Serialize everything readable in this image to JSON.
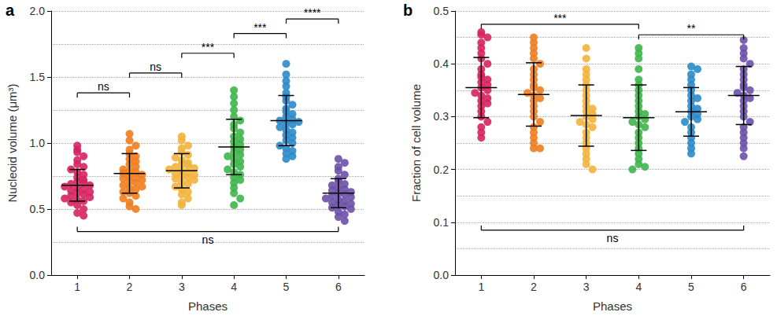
{
  "chart_data": [
    {
      "type": "scatter",
      "title": "a",
      "x_label": "Phases",
      "y_label": "Nucleoid volume (μm³)",
      "categories": [
        "1",
        "2",
        "3",
        "4",
        "5",
        "6"
      ],
      "colors": [
        "#d6245f",
        "#f07d1f",
        "#f2b33d",
        "#3db54a",
        "#2a8ac8",
        "#6b50a8"
      ],
      "values": [
        [
          0.98,
          0.95,
          0.93,
          0.9,
          0.87,
          0.84,
          0.82,
          0.8,
          0.78,
          0.76,
          0.74,
          0.72,
          0.71,
          0.7,
          0.69,
          0.68,
          0.67,
          0.66,
          0.65,
          0.64,
          0.63,
          0.62,
          0.61,
          0.6,
          0.59,
          0.58,
          0.57,
          0.56,
          0.55,
          0.53,
          0.5,
          0.47,
          0.45
        ],
        [
          1.07,
          1.02,
          0.98,
          0.95,
          0.92,
          0.9,
          0.88,
          0.86,
          0.84,
          0.82,
          0.8,
          0.79,
          0.78,
          0.77,
          0.76,
          0.75,
          0.74,
          0.73,
          0.72,
          0.71,
          0.7,
          0.68,
          0.67,
          0.66,
          0.65,
          0.63,
          0.62,
          0.6,
          0.58,
          0.55,
          0.52,
          0.5
        ],
        [
          1.05,
          1.02,
          0.98,
          0.96,
          0.93,
          0.91,
          0.89,
          0.87,
          0.85,
          0.84,
          0.83,
          0.82,
          0.81,
          0.8,
          0.79,
          0.78,
          0.77,
          0.76,
          0.75,
          0.74,
          0.73,
          0.72,
          0.7,
          0.69,
          0.67,
          0.65,
          0.63,
          0.61,
          0.58,
          0.55,
          0.53
        ],
        [
          1.4,
          1.35,
          1.3,
          1.25,
          1.2,
          1.17,
          1.14,
          1.11,
          1.08,
          1.05,
          1.03,
          1.01,
          0.99,
          0.97,
          0.95,
          0.93,
          0.91,
          0.9,
          0.88,
          0.86,
          0.84,
          0.82,
          0.8,
          0.78,
          0.76,
          0.74,
          0.72,
          0.7,
          0.66,
          0.62,
          0.58,
          0.53
        ],
        [
          1.6,
          1.52,
          1.47,
          1.43,
          1.38,
          1.35,
          1.32,
          1.29,
          1.26,
          1.24,
          1.22,
          1.2,
          1.18,
          1.17,
          1.16,
          1.15,
          1.14,
          1.12,
          1.1,
          1.08,
          1.06,
          1.04,
          1.02,
          1.0,
          0.98,
          0.96,
          0.94,
          0.92,
          0.9,
          0.88
        ],
        [
          0.88,
          0.85,
          0.82,
          0.79,
          0.76,
          0.73,
          0.71,
          0.69,
          0.68,
          0.66,
          0.65,
          0.64,
          0.63,
          0.62,
          0.61,
          0.6,
          0.59,
          0.58,
          0.57,
          0.56,
          0.55,
          0.54,
          0.53,
          0.52,
          0.51,
          0.5,
          0.48,
          0.46,
          0.44,
          0.41
        ]
      ],
      "mean": [
        0.68,
        0.77,
        0.79,
        0.97,
        1.17,
        0.62
      ],
      "sd": [
        0.12,
        0.15,
        0.13,
        0.21,
        0.19,
        0.11
      ],
      "brackets": [
        {
          "from": "1",
          "to": "2",
          "y": 1.38,
          "label": "ns"
        },
        {
          "from": "2",
          "to": "3",
          "y": 1.53,
          "label": "ns"
        },
        {
          "from": "3",
          "to": "4",
          "y": 1.68,
          "label": "***"
        },
        {
          "from": "4",
          "to": "5",
          "y": 1.83,
          "label": "***"
        },
        {
          "from": "5",
          "to": "6",
          "y": 1.94,
          "label": "****"
        },
        {
          "from": "1",
          "to": "6",
          "y": 0.33,
          "label": "ns"
        }
      ],
      "ylim": [
        0,
        2.0
      ],
      "yticks": [
        {
          "value": 0,
          "label": "0.0"
        },
        {
          "value": 0.5,
          "label": "0.5"
        },
        {
          "value": 1.0,
          "label": "1.0"
        },
        {
          "value": 1.5,
          "label": "1.5"
        },
        {
          "value": 2.0,
          "label": "2.0"
        }
      ],
      "grid": true
    },
    {
      "type": "scatter",
      "title": "b",
      "x_label": "Phases",
      "y_label": "Fraction of cell volume",
      "categories": [
        "1",
        "2",
        "3",
        "4",
        "5",
        "6"
      ],
      "colors": [
        "#d6245f",
        "#f07d1f",
        "#f2b33d",
        "#3db54a",
        "#2a8ac8",
        "#6b50a8"
      ],
      "values": [
        [
          0.46,
          0.455,
          0.45,
          0.44,
          0.43,
          0.42,
          0.41,
          0.4,
          0.39,
          0.38,
          0.375,
          0.37,
          0.365,
          0.36,
          0.355,
          0.35,
          0.345,
          0.34,
          0.335,
          0.33,
          0.325,
          0.32,
          0.31,
          0.3,
          0.29,
          0.28,
          0.27,
          0.26
        ],
        [
          0.45,
          0.44,
          0.43,
          0.42,
          0.41,
          0.4,
          0.39,
          0.38,
          0.37,
          0.36,
          0.355,
          0.35,
          0.345,
          0.34,
          0.335,
          0.33,
          0.32,
          0.31,
          0.3,
          0.29,
          0.28,
          0.27,
          0.26,
          0.25,
          0.24,
          0.24
        ],
        [
          0.43,
          0.41,
          0.39,
          0.38,
          0.37,
          0.36,
          0.35,
          0.34,
          0.33,
          0.32,
          0.315,
          0.31,
          0.305,
          0.3,
          0.295,
          0.29,
          0.285,
          0.28,
          0.27,
          0.26,
          0.25,
          0.24,
          0.23,
          0.22,
          0.21,
          0.2
        ],
        [
          0.43,
          0.42,
          0.41,
          0.39,
          0.37,
          0.36,
          0.35,
          0.34,
          0.33,
          0.32,
          0.31,
          0.305,
          0.3,
          0.295,
          0.29,
          0.285,
          0.28,
          0.27,
          0.26,
          0.25,
          0.24,
          0.23,
          0.22,
          0.21,
          0.205,
          0.2
        ],
        [
          0.395,
          0.39,
          0.38,
          0.37,
          0.36,
          0.35,
          0.34,
          0.335,
          0.33,
          0.32,
          0.315,
          0.31,
          0.305,
          0.3,
          0.295,
          0.29,
          0.28,
          0.27,
          0.26,
          0.25,
          0.24,
          0.23
        ],
        [
          0.445,
          0.43,
          0.42,
          0.41,
          0.4,
          0.39,
          0.38,
          0.37,
          0.36,
          0.355,
          0.35,
          0.345,
          0.34,
          0.335,
          0.33,
          0.32,
          0.31,
          0.3,
          0.29,
          0.28,
          0.27,
          0.26,
          0.25,
          0.24,
          0.225
        ]
      ],
      "mean": [
        0.355,
        0.342,
        0.302,
        0.298,
        0.309,
        0.34
      ],
      "sd": [
        0.057,
        0.06,
        0.058,
        0.062,
        0.046,
        0.055
      ],
      "brackets": [
        {
          "from": "1",
          "to": "4",
          "y": 0.475,
          "label": "***"
        },
        {
          "from": "4",
          "to": "6",
          "y": 0.455,
          "label": "**"
        },
        {
          "from": "1",
          "to": "6",
          "y": 0.085,
          "label": "ns"
        }
      ],
      "ylim": [
        0,
        0.5
      ],
      "yticks": [
        {
          "value": 0,
          "label": "0.0"
        },
        {
          "value": 0.1,
          "label": "0.1"
        },
        {
          "value": 0.2,
          "label": "0.2"
        },
        {
          "value": 0.3,
          "label": "0.3"
        },
        {
          "value": 0.4,
          "label": "0.4"
        },
        {
          "value": 0.5,
          "label": "0.5"
        }
      ],
      "grid": true
    }
  ]
}
